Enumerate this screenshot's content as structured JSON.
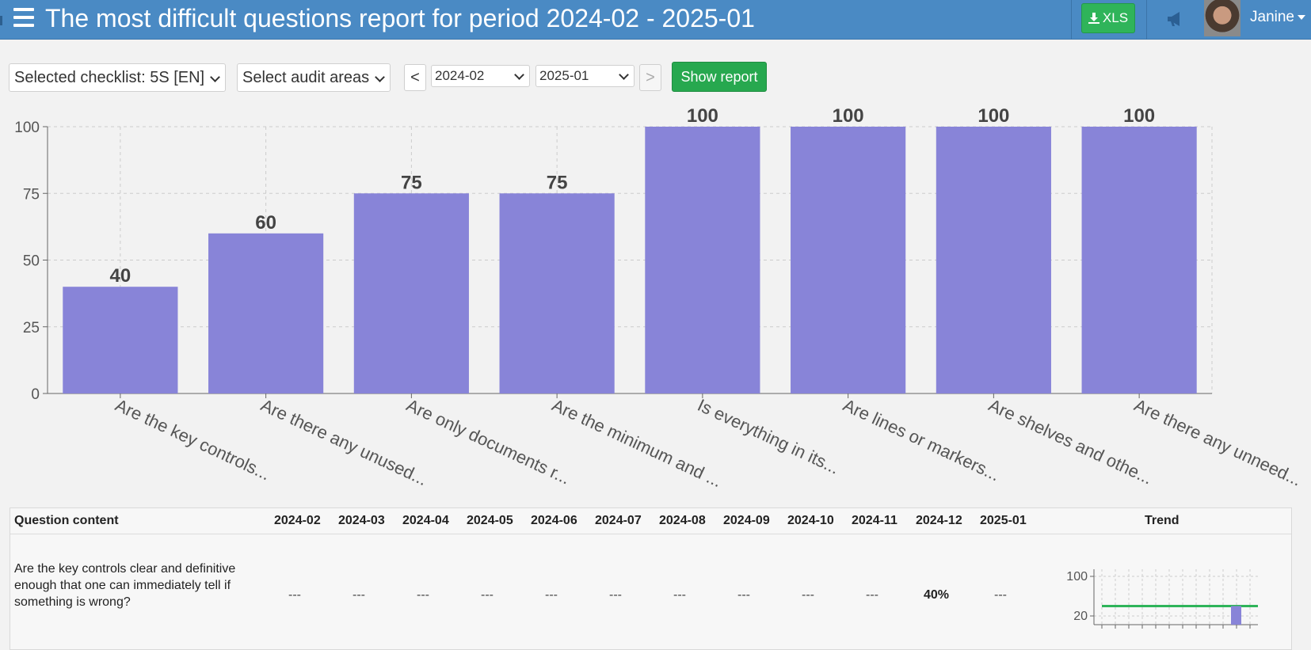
{
  "header": {
    "title": "The most difficult questions report for period 2024-02 - 2025-01",
    "xls_label": "XLS",
    "user_name": "Janine"
  },
  "toolbar": {
    "checklist_select": "Selected checklist: 5S [EN]",
    "areas_select": "Select audit areas",
    "prev_label": "<",
    "next_label": ">",
    "from_period": "2024-02",
    "to_period": "2025-01",
    "show_report_label": "Show report"
  },
  "colors": {
    "header_bg": "#4a8ac4",
    "bar": "#8884d8",
    "show_button": "#27a84f",
    "xls_button": "#2fb45a",
    "trend_line": "#2fb45a"
  },
  "icons": [
    "hamburger-icon",
    "download-icon",
    "megaphone-icon",
    "chevron-down-icon"
  ],
  "chart_data": {
    "type": "bar",
    "categories": [
      "Are the key controls...",
      "Are there any unused...",
      "Are only documents r...",
      "Are the minimum and ...",
      "Is everything in its...",
      "Are lines or markers...",
      "Are shelves and othe...",
      "Are there any unneed..."
    ],
    "values": [
      40,
      60,
      75,
      75,
      100,
      100,
      100,
      100
    ],
    "ylim": [
      0,
      100
    ],
    "yticks": [
      "0",
      "25",
      "50",
      "75",
      "100"
    ],
    "grid": true,
    "data_labels": true
  },
  "table": {
    "headers": [
      "Question content",
      "2024-02",
      "2024-03",
      "2024-04",
      "2024-05",
      "2024-06",
      "2024-07",
      "2024-08",
      "2024-09",
      "2024-10",
      "2024-11",
      "2024-12",
      "2025-01",
      "Trend"
    ],
    "rows": [
      {
        "question": "Are the key controls clear and definitive enough that one can immediately tell if something is wrong?",
        "values": [
          "---",
          "---",
          "---",
          "---",
          "---",
          "---",
          "---",
          "---",
          "---",
          "---",
          "40%",
          "---"
        ],
        "trend": {
          "y_ticks": [
            "100",
            "20"
          ],
          "line_value": 40,
          "bar_value": 40
        }
      }
    ]
  }
}
